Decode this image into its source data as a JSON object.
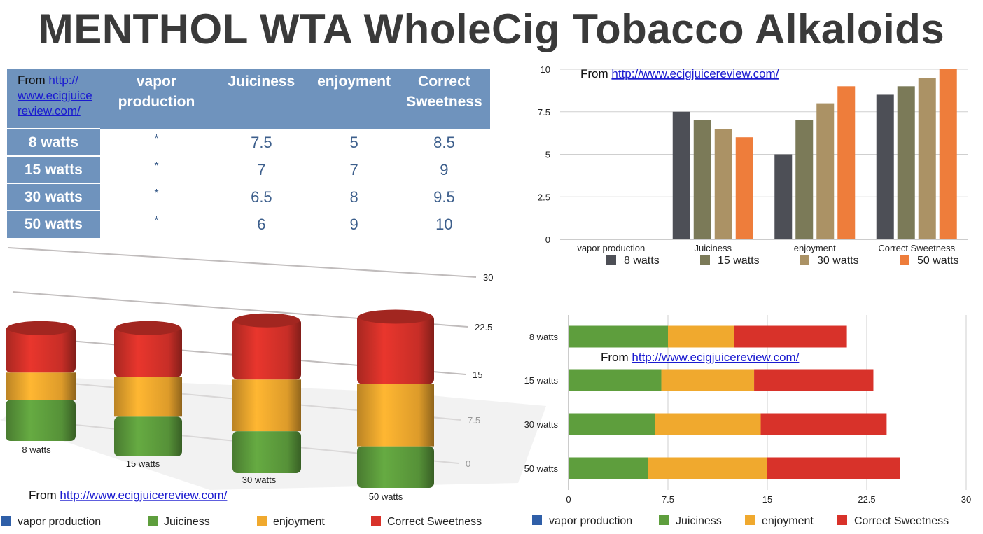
{
  "title": "MENTHOL WTA WholeCig Tobacco Alkaloids",
  "source_prefix": "From",
  "source_url": "http://www.ecigjuicereview.com/",
  "table": {
    "source_line1": "http://",
    "source_line2": "www.ecigjuice",
    "source_line3": "review.com/",
    "headers": [
      "vapor production",
      "Juiciness",
      "enjoyment",
      "Correct Sweetness"
    ],
    "rows": [
      {
        "label": "8 watts",
        "cells": [
          "*",
          "7.5",
          "5",
          "8.5"
        ]
      },
      {
        "label": "15 watts",
        "cells": [
          "*",
          "7",
          "7",
          "9"
        ]
      },
      {
        "label": "30 watts",
        "cells": [
          "*",
          "6.5",
          "8",
          "9.5"
        ]
      },
      {
        "label": "50 watts",
        "cells": [
          "*",
          "6",
          "9",
          "10"
        ]
      }
    ]
  },
  "chart_data": [
    {
      "type": "bar",
      "categories": [
        "vapor production",
        "Juiciness",
        "enjoyment",
        "Correct Sweetness"
      ],
      "series": [
        {
          "name": "8 watts",
          "values": [
            0,
            7.5,
            5,
            8.5
          ],
          "color": "#4d4f56"
        },
        {
          "name": "15 watts",
          "values": [
            0,
            7,
            7,
            9
          ],
          "color": "#7b7a58"
        },
        {
          "name": "30 watts",
          "values": [
            0,
            6.5,
            8,
            9.5
          ],
          "color": "#ab9265"
        },
        {
          "name": "50 watts",
          "values": [
            0,
            6,
            9,
            10
          ],
          "color": "#ee7d3b"
        }
      ],
      "ylim": [
        0,
        10
      ],
      "yticks": [
        "0",
        "2.5",
        "5",
        "7.5",
        "10"
      ],
      "grid": true,
      "legend": "bottom"
    },
    {
      "type": "bar",
      "stacked": true,
      "three_d": true,
      "categories": [
        "8 watts",
        "15 watts",
        "30 watts",
        "50 watts"
      ],
      "series": [
        {
          "name": "vapor production",
          "values": [
            0,
            0,
            0,
            0
          ],
          "color": "#2f5fa8"
        },
        {
          "name": "Juiciness",
          "values": [
            7.5,
            7,
            6.5,
            6
          ],
          "color": "#5e9e3d"
        },
        {
          "name": "enjoyment",
          "values": [
            5,
            7,
            8,
            9
          ],
          "color": "#f0a92e"
        },
        {
          "name": "Correct Sweetness",
          "values": [
            8.5,
            9,
            9.5,
            10
          ],
          "color": "#d8322a"
        }
      ],
      "ylim": [
        0,
        30
      ],
      "yticks": [
        "0",
        "7.5",
        "15",
        "22.5",
        "30"
      ],
      "grid": true,
      "legend": "bottom"
    },
    {
      "type": "bar",
      "stacked": true,
      "orientation": "horizontal",
      "categories": [
        "8 watts",
        "15 watts",
        "30 watts",
        "50 watts"
      ],
      "series": [
        {
          "name": "vapor production",
          "values": [
            0,
            0,
            0,
            0
          ],
          "color": "#2f5fa8"
        },
        {
          "name": "Juiciness",
          "values": [
            7.5,
            7,
            6.5,
            6
          ],
          "color": "#5e9e3d"
        },
        {
          "name": "enjoyment",
          "values": [
            5,
            7,
            8,
            9
          ],
          "color": "#f0a92e"
        },
        {
          "name": "Correct Sweetness",
          "values": [
            8.5,
            9,
            9.5,
            10
          ],
          "color": "#d8322a"
        }
      ],
      "xlim": [
        0,
        30
      ],
      "xticks": [
        "0",
        "7.5",
        "15",
        "22.5",
        "30"
      ],
      "grid": true,
      "legend": "bottom"
    }
  ]
}
